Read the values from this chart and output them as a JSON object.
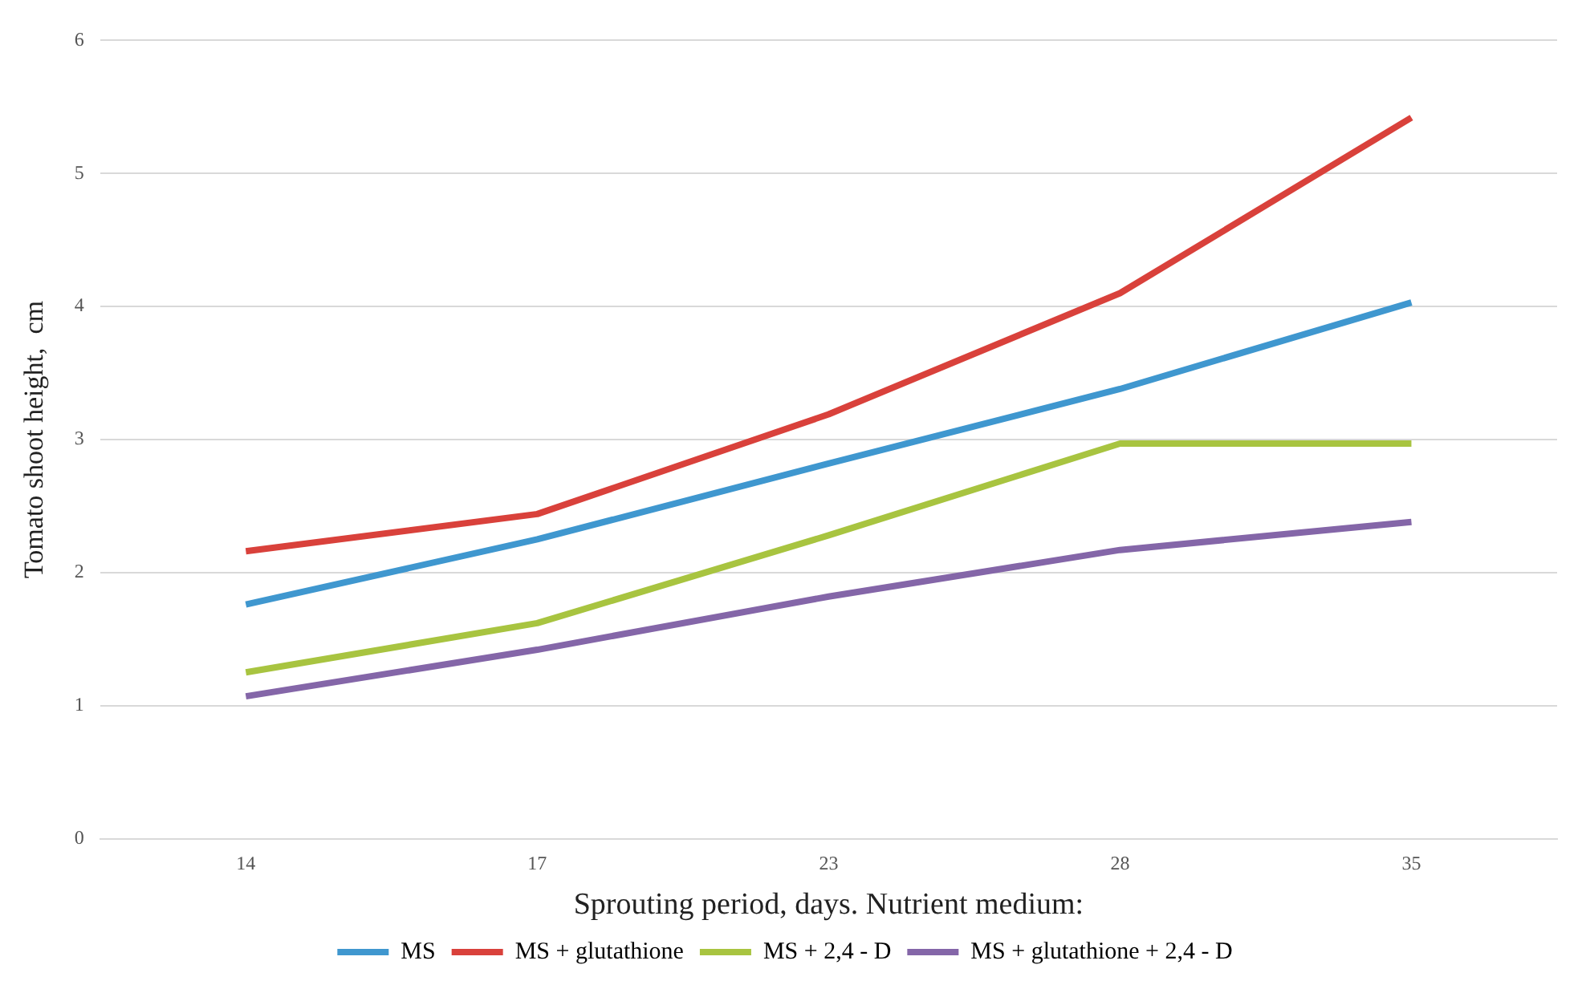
{
  "chart_data": {
    "type": "line",
    "xlabel": "Sprouting period, days. Nutrient medium:",
    "ylabel": "Tomato shoot height,  cm",
    "categories": [
      "14",
      "17",
      "23",
      "28",
      "35"
    ],
    "series": [
      {
        "name": "MS",
        "color": "#3f97cf",
        "values": [
          1.76,
          2.25,
          2.82,
          3.38,
          4.03
        ]
      },
      {
        "name": "MS + glutathione",
        "color": "#d9413b",
        "values": [
          2.16,
          2.44,
          3.19,
          4.1,
          5.42
        ]
      },
      {
        "name": "MS + 2,4 - D",
        "color": "#a8c440",
        "values": [
          1.25,
          1.62,
          2.28,
          2.97,
          2.97
        ]
      },
      {
        "name": "MS + glutathione + 2,4 - D",
        "color": "#8466a8",
        "values": [
          1.07,
          1.42,
          1.82,
          2.17,
          2.38
        ]
      }
    ],
    "ylim": [
      0,
      6
    ],
    "yticks": [
      0,
      1,
      2,
      3,
      4,
      5,
      6
    ],
    "grid": "y",
    "legend": "bottom",
    "marker": "none",
    "line_style": "solid"
  }
}
